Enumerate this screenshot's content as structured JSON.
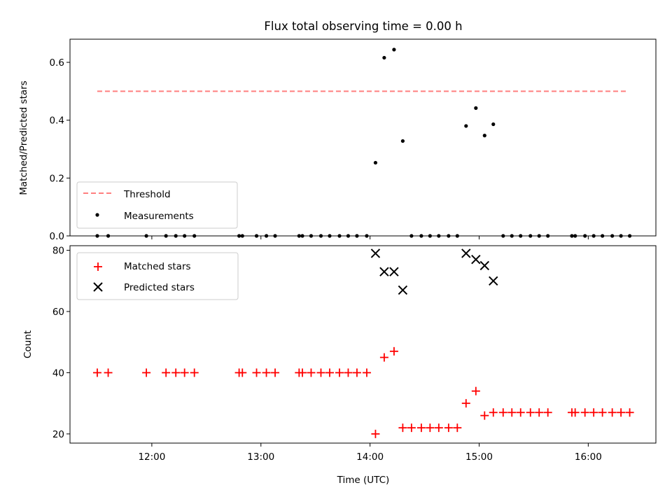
{
  "chart_data": [
    {
      "type": "scatter",
      "title": "Flux total observing time = 0.00 h",
      "xlabel": "",
      "ylabel": "Matched/Predicted stars",
      "xlim": [
        11.25,
        16.62
      ],
      "ylim": [
        0,
        0.68
      ],
      "yticks": [
        0.0,
        0.2,
        0.4,
        0.6
      ],
      "ytick_labels": [
        "0.0",
        "0.2",
        "0.4",
        "0.6"
      ],
      "legend_position": "lower-left",
      "series": [
        {
          "name": "Threshold",
          "kind": "dashed-line",
          "color": "#ff7f7f",
          "x": [
            11.5,
            16.35
          ],
          "y": [
            0.5,
            0.5
          ]
        },
        {
          "name": "Measurements",
          "kind": "dot",
          "color": "#000000",
          "x": [
            11.5,
            11.6,
            11.95,
            12.13,
            12.22,
            12.3,
            12.39,
            12.8,
            12.83,
            12.96,
            13.05,
            13.13,
            13.35,
            13.38,
            13.46,
            13.55,
            13.63,
            13.72,
            13.8,
            13.88,
            13.97,
            14.05,
            14.13,
            14.22,
            14.3,
            14.38,
            14.47,
            14.55,
            14.63,
            14.72,
            14.8,
            14.88,
            14.97,
            15.05,
            15.13,
            15.22,
            15.3,
            15.38,
            15.47,
            15.55,
            15.63,
            15.85,
            15.88,
            15.97,
            16.05,
            16.13,
            16.22,
            16.3,
            16.38
          ],
          "y": [
            0,
            0,
            0,
            0,
            0,
            0,
            0,
            0,
            0,
            0,
            0,
            0,
            0,
            0,
            0,
            0,
            0,
            0,
            0,
            0,
            0,
            0.253,
            0.616,
            0.644,
            0.328,
            0,
            0,
            0,
            0,
            0,
            0,
            0.38,
            0.442,
            0.347,
            0.386,
            0,
            0,
            0,
            0,
            0,
            0,
            0,
            0,
            0,
            0,
            0,
            0,
            0,
            0
          ]
        }
      ]
    },
    {
      "type": "scatter",
      "title": "",
      "xlabel": "Time (UTC)",
      "ylabel": "Count",
      "xlim": [
        11.25,
        16.62
      ],
      "ylim": [
        17,
        81.5
      ],
      "yticks": [
        20,
        40,
        60,
        80
      ],
      "ytick_labels": [
        "20",
        "40",
        "60",
        "80"
      ],
      "xticks": [
        12,
        13,
        14,
        15,
        16
      ],
      "xtick_labels": [
        "12:00",
        "13:00",
        "14:00",
        "15:00",
        "16:00"
      ],
      "legend_position": "upper-left",
      "series": [
        {
          "name": "Matched stars",
          "kind": "plus",
          "color": "#ff0000",
          "x": [
            11.5,
            11.6,
            11.95,
            12.13,
            12.22,
            12.3,
            12.39,
            12.8,
            12.83,
            12.96,
            13.05,
            13.13,
            13.35,
            13.38,
            13.46,
            13.55,
            13.63,
            13.72,
            13.8,
            13.88,
            13.97,
            14.05,
            14.13,
            14.22,
            14.3,
            14.38,
            14.47,
            14.55,
            14.63,
            14.72,
            14.8,
            14.88,
            14.97,
            15.05,
            15.13,
            15.22,
            15.3,
            15.38,
            15.47,
            15.55,
            15.63,
            15.85,
            15.88,
            15.97,
            16.05,
            16.13,
            16.22,
            16.3,
            16.38
          ],
          "y": [
            40,
            40,
            40,
            40,
            40,
            40,
            40,
            40,
            40,
            40,
            40,
            40,
            40,
            40,
            40,
            40,
            40,
            40,
            40,
            40,
            40,
            20,
            45,
            47,
            22,
            22,
            22,
            22,
            22,
            22,
            22,
            30,
            34,
            26,
            27,
            27,
            27,
            27,
            27,
            27,
            27,
            27,
            27,
            27,
            27,
            27,
            27,
            27,
            27
          ]
        },
        {
          "name": "Predicted stars",
          "kind": "x",
          "color": "#000000",
          "x": [
            14.05,
            14.13,
            14.22,
            14.3,
            14.88,
            14.97,
            15.05,
            15.13
          ],
          "y": [
            79,
            73,
            73,
            67,
            79,
            77,
            75,
            70
          ]
        }
      ]
    }
  ]
}
